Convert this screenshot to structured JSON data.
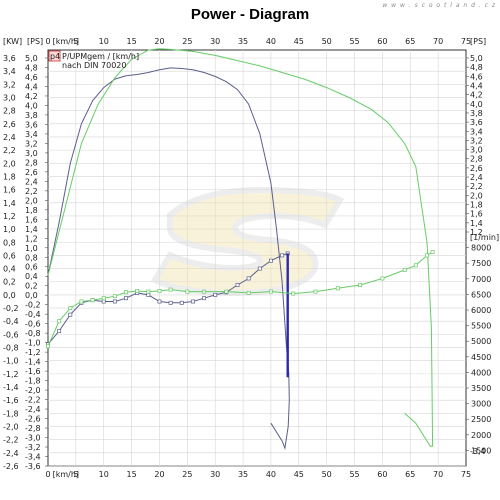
{
  "watermark": "w w w . s c o o t l a n d . c z",
  "chart_data": {
    "type": "line",
    "title": "Power - Diagram",
    "units": {
      "left_outer": "[KW]",
      "left_inner": "[PS]",
      "top": "[km/h]",
      "bottom": "[km/h]",
      "right": "[1/min]",
      "right_top": "[PS]"
    },
    "legend": {
      "badge": "p4",
      "lines": [
        "P/UPMgem / [km/h]",
        "nach DIN 70020"
      ],
      "placement": "top-left"
    },
    "x_axis": {
      "range": [
        0,
        75
      ],
      "ticks": [
        0,
        5,
        10,
        15,
        20,
        25,
        30,
        35,
        40,
        45,
        50,
        55,
        60,
        65,
        70,
        75
      ]
    },
    "kw_axis": {
      "range": [
        -2.6,
        3.6
      ],
      "ticks": [
        3.6,
        3.4,
        3.2,
        3.0,
        2.8,
        2.6,
        2.4,
        2.2,
        2.0,
        1.8,
        1.6,
        1.4,
        1.2,
        1.0,
        0.8,
        0.6,
        0.4,
        0.2,
        0.0,
        -0.2,
        -0.4,
        -0.6,
        -0.8,
        -1.0,
        -1.2,
        -1.4,
        -1.6,
        -1.8,
        -2.0,
        -2.2,
        -2.4,
        -2.6
      ],
      "tick_labels": [
        "3,6",
        "3,4",
        "3,2",
        "3,0",
        "2,8",
        "2,6",
        "2,4",
        "2,2",
        "2,0",
        "1,8",
        "1,6",
        "1,4",
        "1,2",
        "1,0",
        "0,8",
        "0,6",
        "0,4",
        "0,2",
        "0,0",
        "-0,2",
        "-0,4",
        "-0,6",
        "-0,8",
        "-1,0",
        "-1,2",
        "-1,4",
        "-1,6",
        "-1,8",
        "-2,0",
        "-2,2",
        "-2,4",
        "-2,6"
      ]
    },
    "ps_axis": {
      "range": [
        -3.6,
        5.0
      ],
      "ticks": [
        5.0,
        4.8,
        4.6,
        4.4,
        4.2,
        4.0,
        3.8,
        3.6,
        3.4,
        3.2,
        3.0,
        2.8,
        2.6,
        2.4,
        2.2,
        2.0,
        1.8,
        1.6,
        1.4,
        1.2,
        1.0,
        0.8,
        0.6,
        0.4,
        0.2,
        0.0,
        -0.2,
        -0.4,
        -0.6,
        -0.8,
        -1.0,
        -1.2,
        -1.4,
        -1.6,
        -1.8,
        -2.0,
        -2.2,
        -2.4,
        -2.6,
        -2.8,
        -3.0,
        -3.2,
        -3.4,
        -3.6
      ],
      "tick_labels": [
        "5,0",
        "4,8",
        "4,6",
        "4,4",
        "4,2",
        "4,0",
        "3,8",
        "3,6",
        "3,4",
        "3,2",
        "3,0",
        "2,8",
        "2,6",
        "2,4",
        "2,2",
        "2,0",
        "1,8",
        "1,6",
        "1,4",
        "1,2",
        "1,0",
        "0,8",
        "0,6",
        "0,4",
        "0,2",
        "0,0",
        "-0,2",
        "-0,4",
        "-0,6",
        "-0,8",
        "-1,0",
        "-1,2",
        "-1,4",
        "-1,6",
        "-1,8",
        "-2,0",
        "-2,2",
        "-2,4",
        "-2,6",
        "-2,8",
        "-3,0",
        "-3,2",
        "-3,4",
        "-3,6"
      ]
    },
    "right_ps_axis": {
      "range": [
        1.2,
        5.0
      ],
      "ticks": [
        5.0,
        4.8,
        4.6,
        4.4,
        4.2,
        4.0,
        3.8,
        3.6,
        3.4,
        3.2,
        3.0,
        2.8,
        2.6,
        2.4,
        2.2,
        2.0,
        1.8,
        1.6,
        1.4,
        1.2
      ],
      "tick_labels": [
        "5,0",
        "4,8",
        "4,6",
        "4,4",
        "4,2",
        "4,0",
        "3,8",
        "3,6",
        "3,4",
        "3,2",
        "3,0",
        "2,8",
        "2,6",
        "2,4",
        "2,2",
        "2,0",
        "1,8",
        "1,6",
        "1,4",
        "1,2"
      ],
      "extra_bottom_label": "-3,4"
    },
    "rpm_axis": {
      "range": [
        1000,
        8500
      ],
      "ticks": [
        8000,
        7500,
        7000,
        6500,
        6000,
        5500,
        5000,
        4500,
        4000,
        3500,
        3000,
        2500,
        2000,
        1500
      ],
      "tick_labels": [
        "8000",
        "7500",
        "7000",
        "6500",
        "6000",
        "5500",
        "5000",
        "4500",
        "4000",
        "3500",
        "3000",
        "2500",
        "2000",
        "1500"
      ]
    },
    "grid": true,
    "series": [
      {
        "color": "#5a5f8c",
        "axis": "kw",
        "points": [
          [
            0,
            0.3
          ],
          [
            2,
            1.1
          ],
          [
            4,
            2.0
          ],
          [
            6,
            2.6
          ],
          [
            8,
            2.95
          ],
          [
            10,
            3.15
          ],
          [
            12,
            3.28
          ],
          [
            14,
            3.33
          ],
          [
            16,
            3.35
          ],
          [
            18,
            3.38
          ],
          [
            20,
            3.42
          ],
          [
            22,
            3.45
          ],
          [
            24,
            3.44
          ],
          [
            26,
            3.42
          ],
          [
            28,
            3.38
          ],
          [
            30,
            3.32
          ],
          [
            32,
            3.24
          ],
          [
            34,
            3.12
          ],
          [
            36,
            2.9
          ],
          [
            38,
            2.45
          ],
          [
            40,
            1.7
          ],
          [
            41,
            1.0
          ],
          [
            42,
            0.2
          ],
          [
            42.8,
            -0.8
          ],
          [
            43.2,
            -1.2
          ],
          [
            43.3,
            -1.6
          ],
          [
            43.1,
            -2.0
          ],
          [
            42.5,
            -2.33
          ],
          [
            42,
            -2.22
          ],
          [
            40,
            -1.95
          ]
        ]
      },
      {
        "color": "#5a5f8c",
        "axis": "kw",
        "markers": true,
        "points": [
          [
            0,
            -0.75
          ],
          [
            2,
            -0.55
          ],
          [
            4,
            -0.3
          ],
          [
            6,
            -0.12
          ],
          [
            8,
            -0.08
          ],
          [
            10,
            -0.1
          ],
          [
            12,
            -0.1
          ],
          [
            14,
            -0.05
          ],
          [
            16,
            0.03
          ],
          [
            18,
            0.0
          ],
          [
            20,
            -0.1
          ],
          [
            22,
            -0.12
          ],
          [
            24,
            -0.12
          ],
          [
            26,
            -0.1
          ],
          [
            28,
            -0.05
          ],
          [
            30,
            0.0
          ],
          [
            32,
            0.04
          ],
          [
            34,
            0.15
          ],
          [
            36,
            0.25
          ],
          [
            38,
            0.4
          ],
          [
            40,
            0.52
          ],
          [
            42,
            0.6
          ],
          [
            43,
            0.63
          ]
        ]
      },
      {
        "color": "#2b2aa8",
        "axis": "kw",
        "points": [
          [
            43,
            0.63
          ],
          [
            43,
            -1.25
          ]
        ]
      },
      {
        "color": "#66cc66",
        "axis": "kw",
        "points": [
          [
            0,
            0.3
          ],
          [
            3,
            1.3
          ],
          [
            6,
            2.3
          ],
          [
            9,
            2.9
          ],
          [
            12,
            3.3
          ],
          [
            15,
            3.58
          ],
          [
            18,
            3.72
          ],
          [
            20,
            3.74
          ],
          [
            22,
            3.73
          ],
          [
            26,
            3.7
          ],
          [
            30,
            3.64
          ],
          [
            34,
            3.56
          ],
          [
            38,
            3.48
          ],
          [
            42,
            3.38
          ],
          [
            46,
            3.28
          ],
          [
            50,
            3.15
          ],
          [
            54,
            3.0
          ],
          [
            58,
            2.82
          ],
          [
            61,
            2.62
          ],
          [
            64,
            2.3
          ],
          [
            66,
            1.95
          ],
          [
            68,
            0.8
          ],
          [
            68.8,
            -0.5
          ],
          [
            69,
            -2.3
          ],
          [
            68.6,
            -2.3
          ],
          [
            66,
            -1.95
          ],
          [
            64,
            -1.8
          ]
        ]
      },
      {
        "color": "#66cc66",
        "axis": "kw",
        "markers": true,
        "points": [
          [
            0,
            -0.78
          ],
          [
            2,
            -0.4
          ],
          [
            4,
            -0.2
          ],
          [
            6,
            -0.1
          ],
          [
            8,
            -0.08
          ],
          [
            10,
            -0.05
          ],
          [
            12,
            -0.02
          ],
          [
            14,
            0.04
          ],
          [
            16,
            0.06
          ],
          [
            18,
            0.05
          ],
          [
            20,
            0.06
          ],
          [
            22,
            0.08
          ],
          [
            25,
            0.05
          ],
          [
            28,
            0.05
          ],
          [
            32,
            0.05
          ],
          [
            36,
            0.03
          ],
          [
            40,
            0.05
          ],
          [
            44,
            0.02
          ],
          [
            48,
            0.05
          ],
          [
            52,
            0.1
          ],
          [
            56,
            0.15
          ],
          [
            60,
            0.25
          ],
          [
            64,
            0.38
          ],
          [
            66,
            0.45
          ],
          [
            68,
            0.6
          ],
          [
            69,
            0.65
          ]
        ]
      }
    ]
  }
}
